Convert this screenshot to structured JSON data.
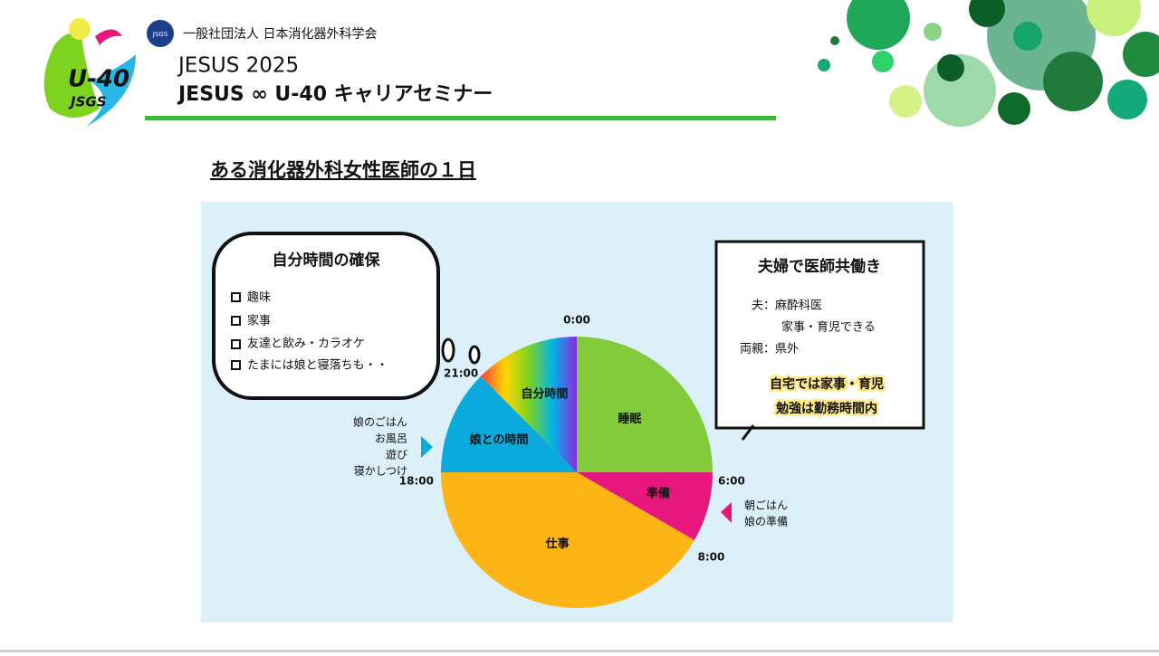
{
  "header": {
    "org": "一般社団法人 日本消化器外科学会",
    "logo_main": "U-40",
    "logo_sub": "JSGS",
    "badge": "JSGS",
    "event": "JESUS 2025",
    "title": "JESUS ∞ U-40 キャリアセミナー"
  },
  "subtitle": "ある消化器外科女性医師の１日",
  "left_bubble": {
    "title": "自分時間の確保",
    "items": [
      "趣味",
      "家事",
      "友達と飲み・カラオケ",
      "たまには娘と寝落ちも・・"
    ]
  },
  "right_box": {
    "title": "夫婦で医師共働き",
    "lines": [
      "夫：麻酔科医",
      "家事・育児できる",
      "両親：県外"
    ],
    "highlight": [
      "自宅では家事・育児",
      "勉強は勤務時間内"
    ]
  },
  "left_note": [
    "娘のごはん",
    "お風呂",
    "遊び",
    "寝かしつけ"
  ],
  "right_note": [
    "朝ごはん",
    "娘の準備"
  ],
  "chart_data": {
    "type": "pie",
    "categories": [
      "睡眠",
      "準備",
      "仕事",
      "娘との時間",
      "自分時間"
    ],
    "values": [
      6,
      2,
      10,
      3,
      3
    ],
    "colors": [
      "#82cc3c",
      "#e8177d",
      "#fdb515",
      "#0aaadc",
      [
        "#ff3b3b",
        "#ffd400",
        "#7ed321",
        "#00b4e6",
        "#8a2be2"
      ]
    ],
    "boundary_labels": [
      "0:00",
      "6:00",
      "8:00",
      "18:00",
      "21:00"
    ]
  }
}
